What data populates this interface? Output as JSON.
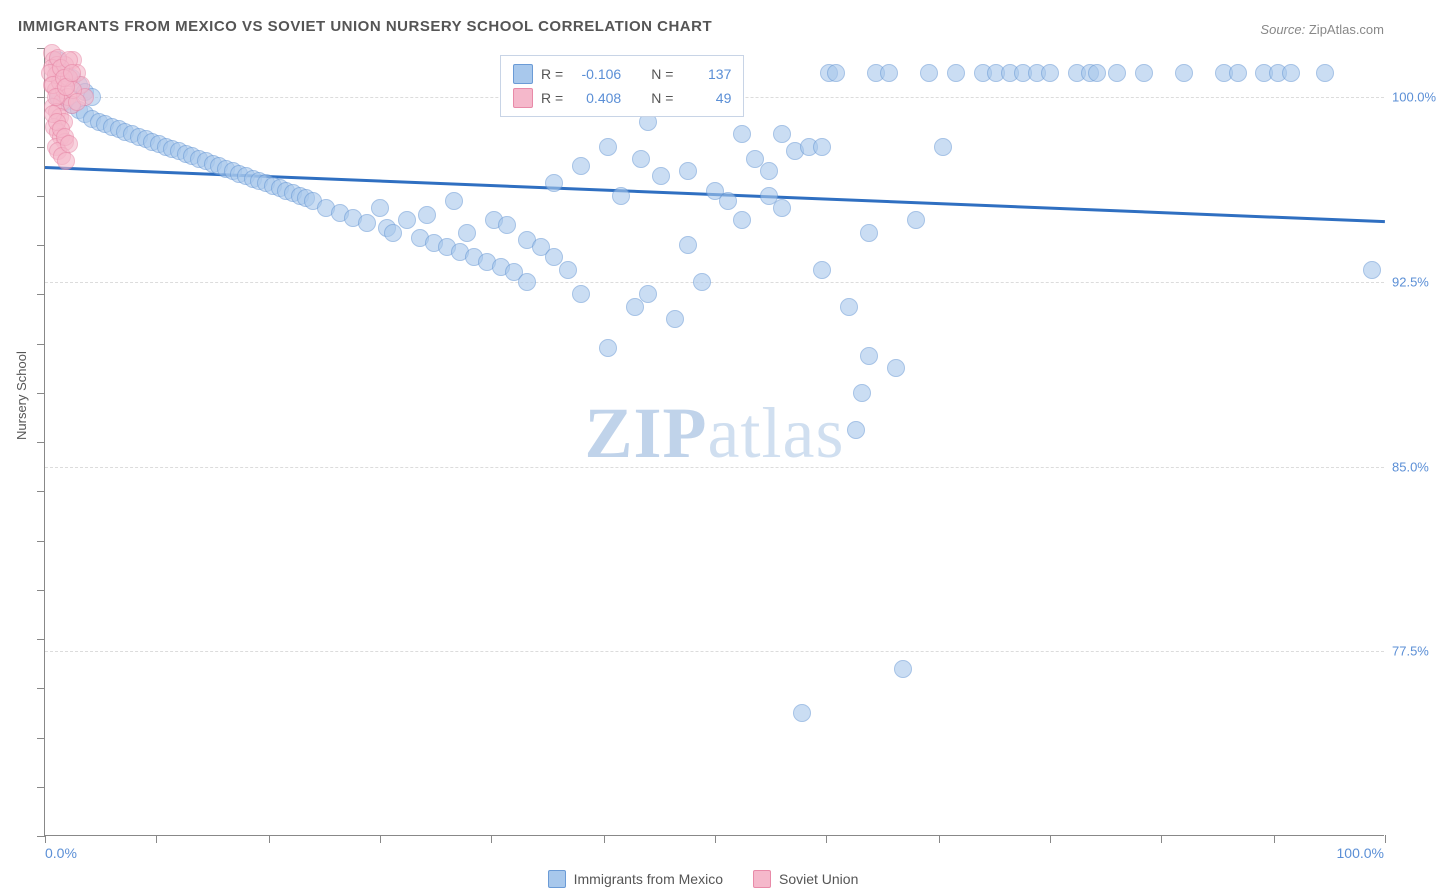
{
  "title": "IMMIGRANTS FROM MEXICO VS SOVIET UNION NURSERY SCHOOL CORRELATION CHART",
  "source_label": "Source:",
  "source_value": "ZipAtlas.com",
  "watermark_bold": "ZIP",
  "watermark_rest": "atlas",
  "yaxis_title": "Nursery School",
  "x_min_label": "0.0%",
  "x_max_label": "100.0%",
  "chart": {
    "type": "scatter",
    "xlim": [
      0,
      100
    ],
    "ylim": [
      70,
      102
    ],
    "y_gridlines": [
      100.0,
      92.5,
      85.0,
      77.5
    ],
    "y_tick_labels": [
      "100.0%",
      "92.5%",
      "85.0%",
      "77.5%"
    ],
    "x_ticks": [
      0,
      8.3,
      16.7,
      25,
      33.3,
      41.7,
      50,
      58.3,
      66.7,
      75,
      83.3,
      91.7,
      100
    ],
    "y_ticks_minor": [
      102,
      100,
      98,
      96,
      94,
      92,
      90,
      88,
      86,
      84,
      82,
      80,
      78,
      76,
      74,
      72,
      70
    ],
    "background": "#ffffff",
    "grid_color": "#dcdcdc",
    "axis_color": "#888888",
    "point_radius": 9,
    "series": [
      {
        "name": "Immigrants from Mexico",
        "color_fill": "#a8c8ec",
        "color_stroke": "#6b9bd6",
        "R": "-0.106",
        "N": "137",
        "regression": {
          "x1": 0,
          "y1": 97.2,
          "x2": 100,
          "y2": 95.0,
          "color": "#2f6fc1",
          "width": 2.5
        },
        "points": [
          [
            1,
            101.5
          ],
          [
            1.5,
            101
          ],
          [
            2,
            100.8
          ],
          [
            2.5,
            100.5
          ],
          [
            3,
            100.2
          ],
          [
            3.5,
            100
          ],
          [
            1,
            100
          ],
          [
            1.5,
            99.8
          ],
          [
            2,
            99.7
          ],
          [
            2.5,
            99.5
          ],
          [
            3,
            99.3
          ],
          [
            3.5,
            99.1
          ],
          [
            4,
            99
          ],
          [
            4.5,
            98.9
          ],
          [
            5,
            98.8
          ],
          [
            5.5,
            98.7
          ],
          [
            6,
            98.6
          ],
          [
            6.5,
            98.5
          ],
          [
            7,
            98.4
          ],
          [
            7.5,
            98.3
          ],
          [
            8,
            98.2
          ],
          [
            8.5,
            98.1
          ],
          [
            9,
            98
          ],
          [
            9.5,
            97.9
          ],
          [
            10,
            97.8
          ],
          [
            10.5,
            97.7
          ],
          [
            11,
            97.6
          ],
          [
            11.5,
            97.5
          ],
          [
            12,
            97.4
          ],
          [
            12.5,
            97.3
          ],
          [
            13,
            97.2
          ],
          [
            13.5,
            97.1
          ],
          [
            14,
            97
          ],
          [
            14.5,
            96.9
          ],
          [
            15,
            96.8
          ],
          [
            15.5,
            96.7
          ],
          [
            16,
            96.6
          ],
          [
            16.5,
            96.5
          ],
          [
            17,
            96.4
          ],
          [
            17.5,
            96.3
          ],
          [
            18,
            96.2
          ],
          [
            18.5,
            96.1
          ],
          [
            19,
            96
          ],
          [
            19.5,
            95.9
          ],
          [
            20,
            95.8
          ],
          [
            21,
            95.5
          ],
          [
            22,
            95.3
          ],
          [
            23,
            95.1
          ],
          [
            24,
            94.9
          ],
          [
            25,
            95.5
          ],
          [
            25.5,
            94.7
          ],
          [
            26,
            94.5
          ],
          [
            27,
            95
          ],
          [
            28,
            94.3
          ],
          [
            28.5,
            95.2
          ],
          [
            29,
            94.1
          ],
          [
            30,
            93.9
          ],
          [
            30.5,
            95.8
          ],
          [
            31,
            93.7
          ],
          [
            31.5,
            94.5
          ],
          [
            32,
            93.5
          ],
          [
            33,
            93.3
          ],
          [
            33.5,
            95
          ],
          [
            34,
            93.1
          ],
          [
            34.5,
            94.8
          ],
          [
            35,
            92.9
          ],
          [
            36,
            94.2
          ],
          [
            37,
            93.9
          ],
          [
            38,
            96.5
          ],
          [
            39,
            93
          ],
          [
            40,
            97.2
          ],
          [
            42,
            89.8
          ],
          [
            43,
            96
          ],
          [
            44,
            91.5
          ],
          [
            44.5,
            97.5
          ],
          [
            45,
            92
          ],
          [
            46,
            96.8
          ],
          [
            47,
            91
          ],
          [
            48,
            97
          ],
          [
            49,
            92.5
          ],
          [
            50,
            96.2
          ],
          [
            51,
            95.8
          ],
          [
            52,
            95
          ],
          [
            53,
            97.5
          ],
          [
            54,
            96
          ],
          [
            55,
            95.5
          ],
          [
            56,
            97.8
          ],
          [
            56.5,
            75
          ],
          [
            57,
            98
          ],
          [
            58,
            93
          ],
          [
            58.5,
            101
          ],
          [
            59,
            101
          ],
          [
            60,
            91.5
          ],
          [
            61,
            88
          ],
          [
            61.5,
            89.5
          ],
          [
            62,
            101
          ],
          [
            63,
            101
          ],
          [
            63.5,
            89
          ],
          [
            64,
            76.8
          ],
          [
            65,
            95
          ],
          [
            66,
            101
          ],
          [
            67,
            98
          ],
          [
            68,
            101
          ],
          [
            70,
            101
          ],
          [
            71,
            101
          ],
          [
            72,
            101
          ],
          [
            73,
            101
          ],
          [
            74,
            101
          ],
          [
            75,
            101
          ],
          [
            77,
            101
          ],
          [
            78,
            101
          ],
          [
            78.5,
            101
          ],
          [
            80,
            101
          ],
          [
            82,
            101
          ],
          [
            85,
            101
          ],
          [
            88,
            101
          ],
          [
            89,
            101
          ],
          [
            91,
            101
          ],
          [
            92,
            101
          ],
          [
            93,
            101
          ],
          [
            99,
            93
          ],
          [
            60.5,
            86.5
          ],
          [
            54,
            97
          ],
          [
            48,
            94
          ],
          [
            52,
            98.5
          ],
          [
            45,
            99
          ],
          [
            42,
            98
          ],
          [
            40,
            92
          ],
          [
            38,
            93.5
          ],
          [
            36,
            92.5
          ],
          [
            61.5,
            94.5
          ],
          [
            58,
            98
          ],
          [
            55,
            98.5
          ],
          [
            95.5,
            101
          ]
        ]
      },
      {
        "name": "Soviet Union",
        "color_fill": "#f5b8cb",
        "color_stroke": "#e88aa8",
        "R": "0.408",
        "N": "49",
        "points": [
          [
            0.5,
            101.8
          ],
          [
            0.7,
            101.5
          ],
          [
            0.9,
            101.3
          ],
          [
            1.0,
            101
          ],
          [
            1.2,
            100.8
          ],
          [
            0.5,
            100.5
          ],
          [
            0.8,
            100.3
          ],
          [
            1.0,
            100
          ],
          [
            1.3,
            99.8
          ],
          [
            0.6,
            99.6
          ],
          [
            0.9,
            99.4
          ],
          [
            1.1,
            99.2
          ],
          [
            1.4,
            99
          ],
          [
            0.7,
            98.8
          ],
          [
            1.0,
            98.6
          ],
          [
            1.2,
            98.4
          ],
          [
            1.5,
            98.2
          ],
          [
            0.8,
            98
          ],
          [
            1.0,
            97.8
          ],
          [
            1.3,
            97.6
          ],
          [
            1.6,
            97.4
          ],
          [
            0.5,
            101.2
          ],
          [
            0.8,
            100.9
          ],
          [
            1.1,
            100.6
          ],
          [
            1.4,
            100.3
          ],
          [
            1.7,
            100
          ],
          [
            2.0,
            99.7
          ],
          [
            0.6,
            99.3
          ],
          [
            0.9,
            99
          ],
          [
            1.2,
            98.7
          ],
          [
            1.5,
            98.4
          ],
          [
            1.8,
            98.1
          ],
          [
            2.1,
            101.5
          ],
          [
            2.4,
            101
          ],
          [
            2.7,
            100.5
          ],
          [
            3.0,
            100
          ],
          [
            1.5,
            101.3
          ],
          [
            1.8,
            100.8
          ],
          [
            2.1,
            100.3
          ],
          [
            2.4,
            99.8
          ],
          [
            0.4,
            101
          ],
          [
            0.6,
            100.5
          ],
          [
            0.8,
            100
          ],
          [
            1.0,
            101.6
          ],
          [
            1.2,
            101.2
          ],
          [
            1.4,
            100.8
          ],
          [
            1.6,
            100.4
          ],
          [
            1.8,
            101.5
          ],
          [
            2.0,
            101
          ]
        ]
      }
    ]
  },
  "legend_top": {
    "R_label": "R =",
    "N_label": "N ="
  },
  "legend_bottom": {
    "series1_label": "Immigrants from Mexico",
    "series2_label": "Soviet Union"
  }
}
